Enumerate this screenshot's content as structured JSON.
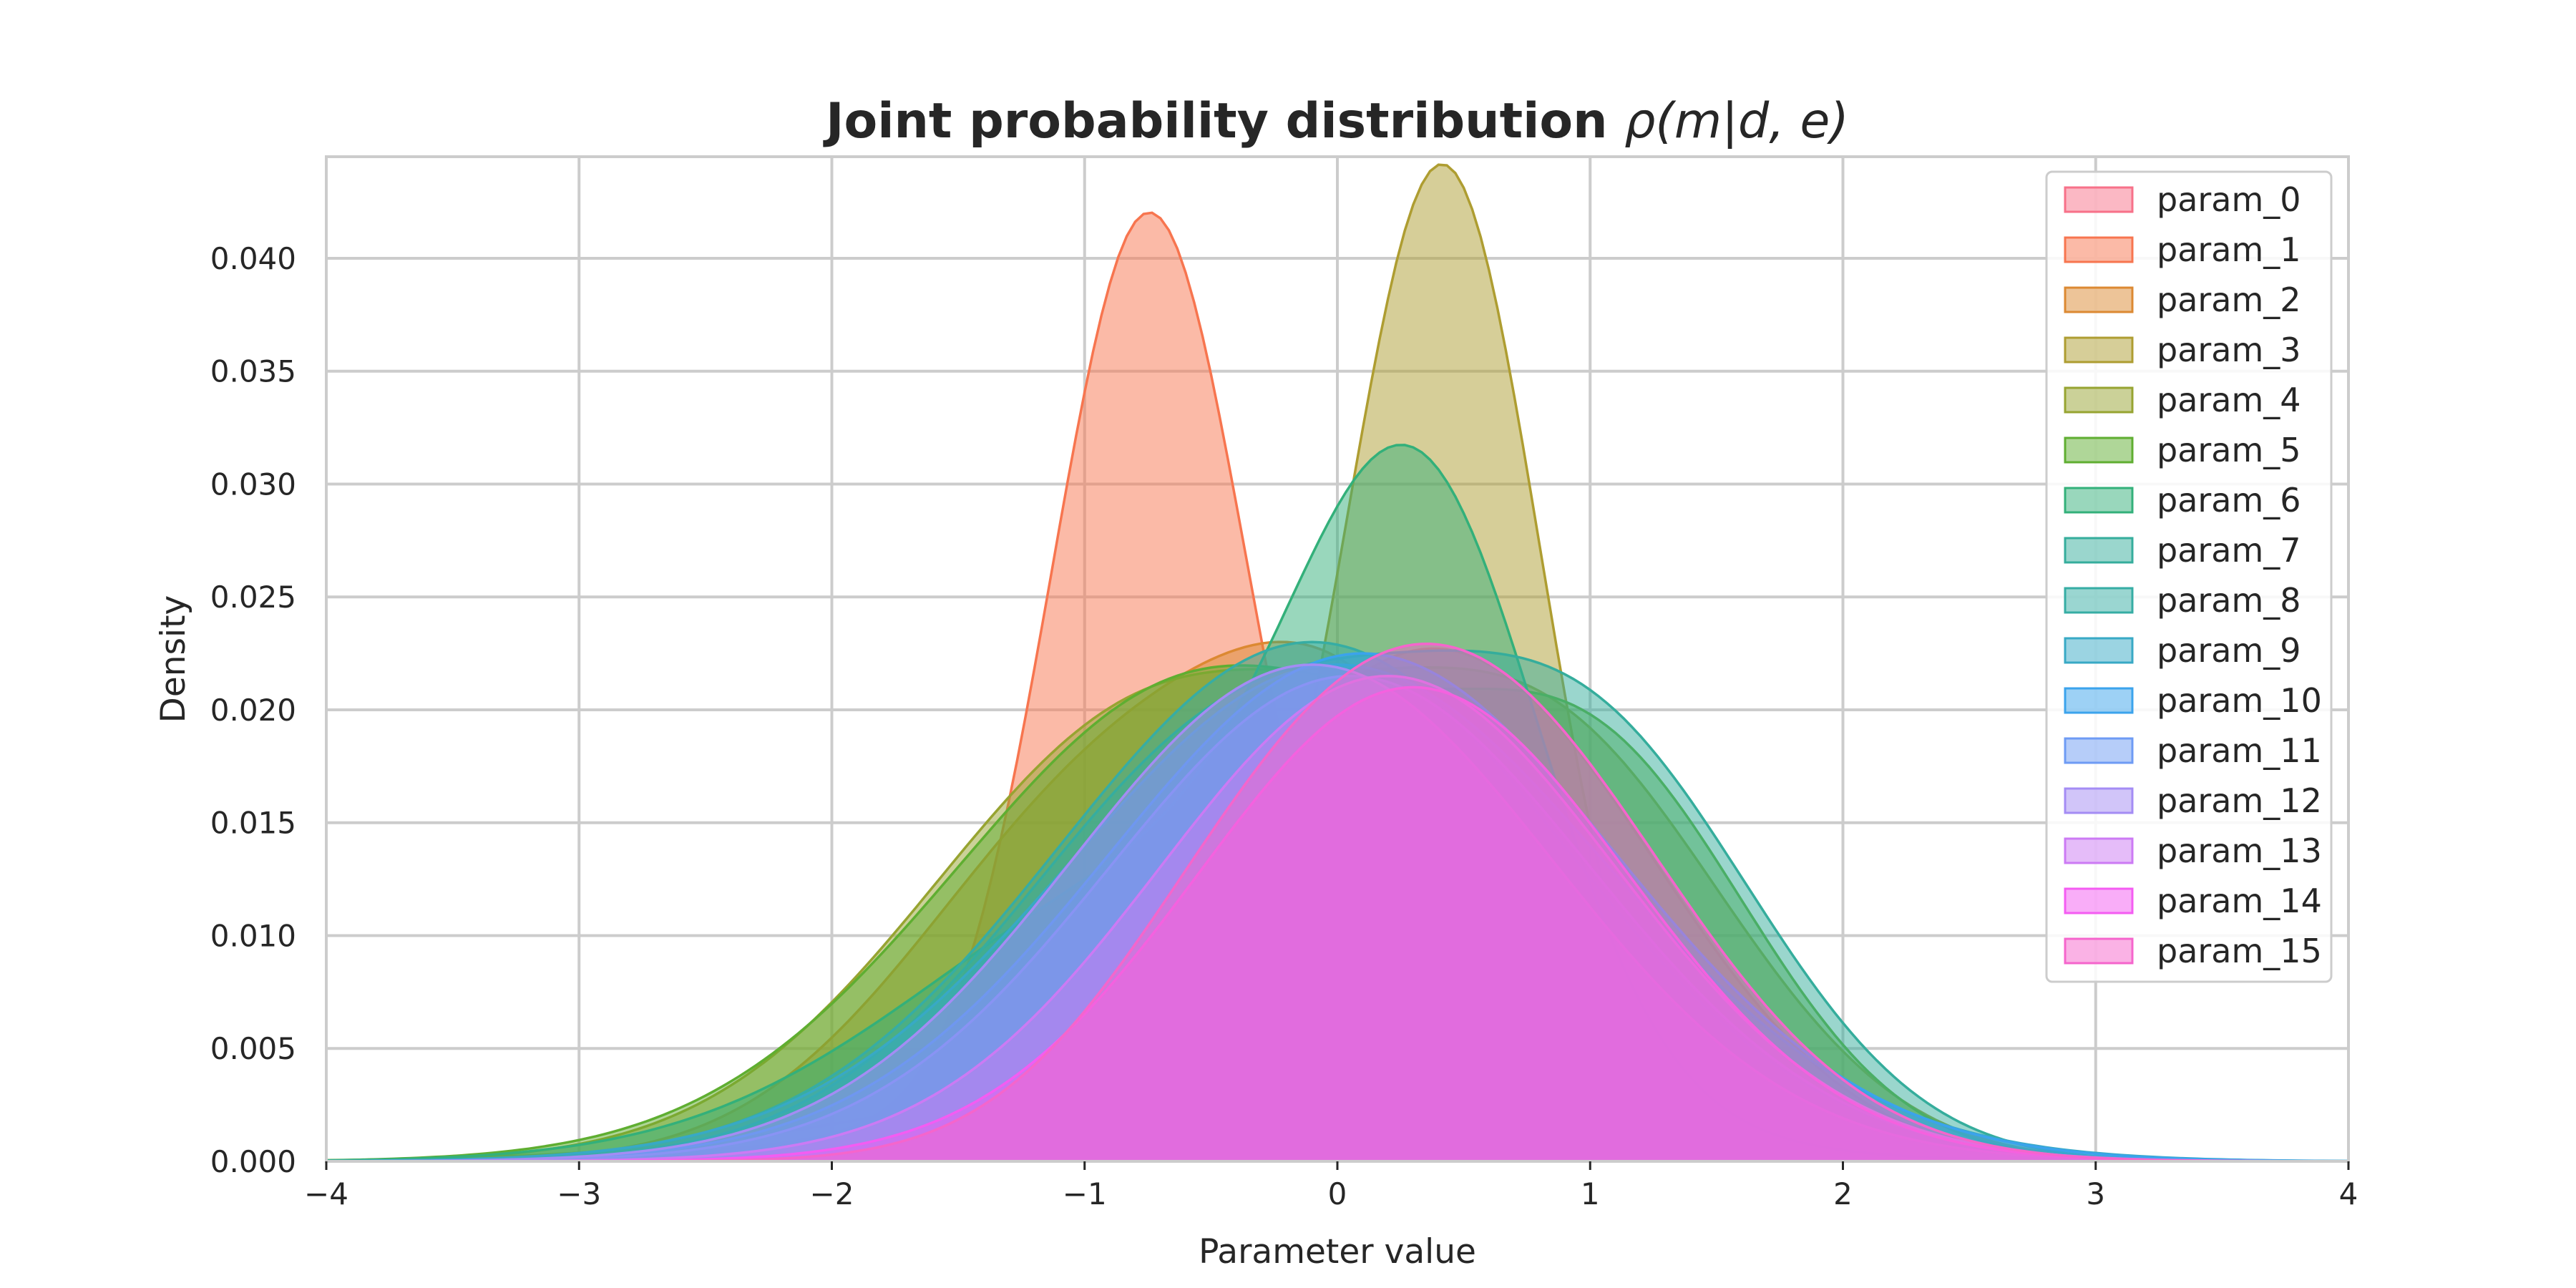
{
  "chart_data": {
    "type": "area",
    "title_main": "Joint probability distribution ",
    "title_math": "ρ(m|d, e)",
    "xlabel": "Parameter value",
    "ylabel": "Density",
    "xlim": [
      -4,
      4
    ],
    "ylim": [
      0,
      0.0445
    ],
    "xticks": [
      -4,
      -3,
      -2,
      -1,
      0,
      1,
      2,
      3,
      4
    ],
    "xtick_labels": [
      "−4",
      "−3",
      "−2",
      "−1",
      "0",
      "1",
      "2",
      "3",
      "4"
    ],
    "yticks": [
      0.0,
      0.005,
      0.01,
      0.015,
      0.02,
      0.025,
      0.03,
      0.035,
      0.04
    ],
    "ytick_labels": [
      "0.000",
      "0.005",
      "0.010",
      "0.015",
      "0.020",
      "0.025",
      "0.030",
      "0.035",
      "0.040"
    ],
    "grid": true,
    "legend_position": "top-right",
    "series": [
      {
        "name": "param_0",
        "color": "#f77189",
        "components": [
          [
            0.6,
            0.75,
            0.0185
          ],
          [
            -0.3,
            0.7,
            0.008
          ]
        ]
      },
      {
        "name": "param_1",
        "color": "#f7754f",
        "components": [
          [
            -0.75,
            0.38,
            0.0385
          ],
          [
            -0.2,
            1.1,
            0.004
          ]
        ]
      },
      {
        "name": "param_2",
        "color": "#dc8932",
        "components": [
          [
            0.15,
            0.6,
            0.015
          ],
          [
            -0.9,
            0.75,
            0.016
          ]
        ]
      },
      {
        "name": "param_3",
        "color": "#ae9d31",
        "components": [
          [
            0.42,
            0.38,
            0.041
          ],
          [
            -0.4,
            1.2,
            0.004
          ]
        ]
      },
      {
        "name": "param_4",
        "color": "#97a431",
        "components": [
          [
            -0.7,
            0.9,
            0.02
          ],
          [
            0.9,
            0.7,
            0.016
          ]
        ]
      },
      {
        "name": "param_5",
        "color": "#5fae31",
        "components": [
          [
            -0.5,
            1.0,
            0.0215
          ],
          [
            1.1,
            0.6,
            0.013
          ]
        ]
      },
      {
        "name": "param_6",
        "color": "#33b07a",
        "components": [
          [
            0.33,
            0.48,
            0.023
          ],
          [
            -0.6,
            1.0,
            0.013
          ]
        ]
      },
      {
        "name": "param_7",
        "color": "#35ad9c",
        "components": [
          [
            -0.3,
            0.9,
            0.02
          ],
          [
            1.1,
            0.65,
            0.014
          ]
        ]
      },
      {
        "name": "param_8",
        "color": "#36ada4",
        "components": [
          [
            -0.1,
            1.0,
            0.023
          ]
        ]
      },
      {
        "name": "param_9",
        "color": "#38a9c5",
        "components": [
          [
            0.0,
            1.05,
            0.022
          ]
        ]
      },
      {
        "name": "param_10",
        "color": "#3ba3ec",
        "components": [
          [
            0.1,
            1.0,
            0.0225
          ]
        ]
      },
      {
        "name": "param_11",
        "color": "#6e9bf4",
        "components": [
          [
            0.05,
            0.95,
            0.0215
          ]
        ]
      },
      {
        "name": "param_12",
        "color": "#a48cf4",
        "components": [
          [
            -0.1,
            0.95,
            0.022
          ]
        ]
      },
      {
        "name": "param_13",
        "color": "#cc7af4",
        "components": [
          [
            0.2,
            0.9,
            0.0215
          ]
        ]
      },
      {
        "name": "param_14",
        "color": "#f45cf2",
        "components": [
          [
            0.3,
            0.85,
            0.021
          ]
        ]
      },
      {
        "name": "param_15",
        "color": "#f565cc",
        "components": [
          [
            0.5,
            0.8,
            0.021
          ],
          [
            -0.4,
            0.6,
            0.005
          ]
        ]
      }
    ]
  }
}
